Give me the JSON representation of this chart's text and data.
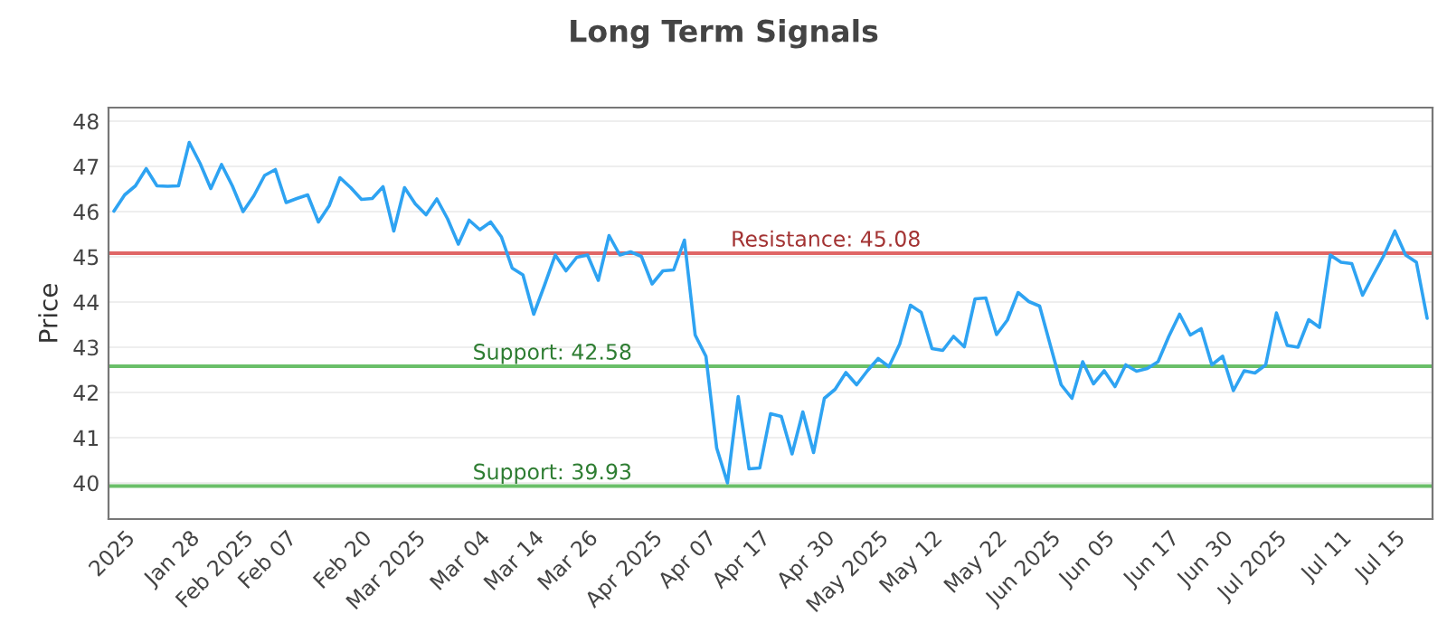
{
  "chart_data": {
    "type": "line",
    "title": "Long Term Signals",
    "ylabel": "Price",
    "categories": [
      null,
      "2025",
      null,
      null,
      null,
      null,
      null,
      "Jan 28",
      null,
      null,
      null,
      null,
      "Feb 2025",
      null,
      null,
      null,
      "Feb 07",
      null,
      null,
      null,
      null,
      null,
      null,
      "Feb 20",
      null,
      null,
      null,
      null,
      "Mar 2025",
      null,
      null,
      null,
      null,
      null,
      "Mar 04",
      null,
      null,
      null,
      null,
      "Mar 14",
      null,
      null,
      null,
      null,
      "Mar 26",
      null,
      null,
      null,
      null,
      null,
      "Apr 2025",
      null,
      null,
      null,
      null,
      "Apr 07",
      null,
      null,
      null,
      null,
      "Apr 17",
      null,
      null,
      null,
      null,
      null,
      "Apr 30",
      null,
      null,
      null,
      null,
      "May 2025",
      null,
      null,
      null,
      null,
      "May 12",
      null,
      null,
      null,
      null,
      null,
      "May 22",
      null,
      null,
      null,
      null,
      "Jun 2025",
      null,
      null,
      null,
      null,
      "Jun 05",
      null,
      null,
      null,
      null,
      null,
      "Jun 17",
      null,
      null,
      null,
      null,
      "Jun 30",
      null,
      null,
      null,
      null,
      "Jul 2025",
      null,
      null,
      null,
      null,
      null,
      "Jul 11",
      null,
      null,
      null,
      null,
      "Jul 15",
      null,
      null,
      null
    ],
    "series": [
      {
        "color": "#2ea3f2",
        "values": [
          46.01,
          46.37,
          46.57,
          46.95,
          46.57,
          46.56,
          46.57,
          47.53,
          47.07,
          46.51,
          47.04,
          46.57,
          46.0,
          46.35,
          46.8,
          46.93,
          46.2,
          46.29,
          46.37,
          45.77,
          46.13,
          46.75,
          46.53,
          46.27,
          46.29,
          46.55,
          45.57,
          46.53,
          46.17,
          45.93,
          46.28,
          45.84,
          45.28,
          45.81,
          45.6,
          45.77,
          45.44,
          44.75,
          44.6,
          43.73,
          44.37,
          45.04,
          44.69,
          44.99,
          45.04,
          44.48,
          45.47,
          45.04,
          45.11,
          45.01,
          44.4,
          44.69,
          44.71,
          45.37,
          43.27,
          42.8,
          40.77,
          40.0,
          41.91,
          40.31,
          40.33,
          41.53,
          41.47,
          40.64,
          41.57,
          40.67,
          41.87,
          42.07,
          42.44,
          42.17,
          42.48,
          42.75,
          42.57,
          43.07,
          43.93,
          43.77,
          42.97,
          42.93,
          43.24,
          43.01,
          44.07,
          44.09,
          43.28,
          43.6,
          44.21,
          44.01,
          43.91,
          43.04,
          42.17,
          41.87,
          42.68,
          42.19,
          42.48,
          42.13,
          42.61,
          42.47,
          42.53,
          42.68,
          43.24,
          43.73,
          43.27,
          43.41,
          42.61,
          42.8,
          42.04,
          42.48,
          42.43,
          42.61,
          43.76,
          43.04,
          43.0,
          43.61,
          43.44,
          45.04,
          44.88,
          44.85,
          44.15,
          44.6,
          45.04,
          45.57,
          45.04,
          44.88,
          43.64
        ]
      }
    ],
    "ylim": [
      39.2,
      48.3
    ],
    "yticks": [
      40,
      41,
      42,
      43,
      44,
      45,
      46,
      47,
      48
    ],
    "grid": "y",
    "ref_lines": [
      {
        "axis": "y",
        "value": 45.08,
        "label": "Resistance: 45.08",
        "color": "#e06666"
      },
      {
        "axis": "y",
        "value": 42.58,
        "label": "Support: 42.58",
        "color": "#6abf69"
      },
      {
        "axis": "y",
        "value": 39.93,
        "label": "Support: 39.93",
        "color": "#6abf69"
      }
    ]
  }
}
